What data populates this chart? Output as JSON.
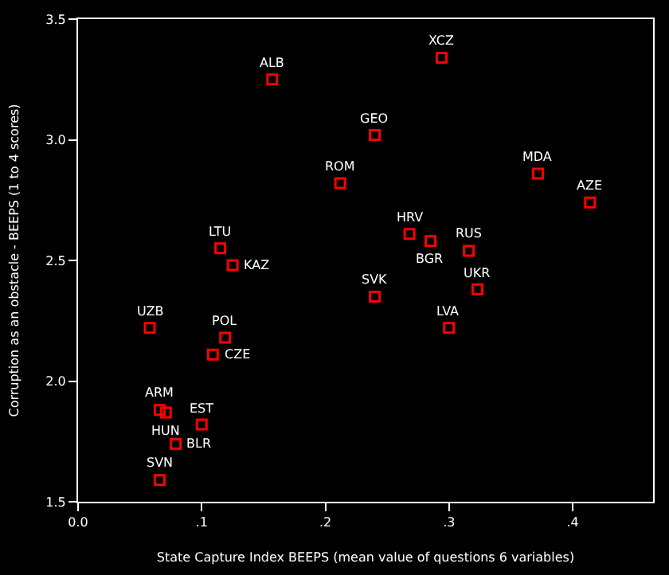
{
  "chart_data": {
    "type": "scatter",
    "xlabel": "State Capture Index BEEPS (mean value of questions 6 variables)",
    "ylabel": "Corruption as an obstacle - BEEPS (1 to 4 scores)",
    "xlim": [
      0,
      0.465
    ],
    "ylim": [
      1.5,
      3.5
    ],
    "xticks": [
      {
        "value": 0,
        "label": "0.0"
      },
      {
        "value": 0.1,
        "label": ".1"
      },
      {
        "value": 0.2,
        "label": ".2"
      },
      {
        "value": 0.3,
        "label": ".3"
      },
      {
        "value": 0.4,
        "label": ".4"
      }
    ],
    "yticks": [
      {
        "value": 1.5,
        "label": "1.5"
      },
      {
        "value": 2.0,
        "label": "2.0"
      },
      {
        "value": 2.5,
        "label": "2.5"
      },
      {
        "value": 3.0,
        "label": "3.0"
      },
      {
        "value": 3.5,
        "label": "3.5"
      }
    ],
    "marker": "square",
    "grid": false,
    "legend": false,
    "series": [
      {
        "color": "#ff0000",
        "x": [
          0.157,
          0.294,
          0.24,
          0.372,
          0.414,
          0.212,
          0.268,
          0.285,
          0.316,
          0.115,
          0.125,
          0.24,
          0.323,
          0.3,
          0.058,
          0.119,
          0.109,
          0.066,
          0.071,
          0.1,
          0.079,
          0.066
        ],
        "values": [
          3.25,
          3.34,
          3.02,
          2.86,
          2.74,
          2.82,
          2.61,
          2.58,
          2.54,
          2.55,
          2.48,
          2.35,
          2.38,
          2.22,
          2.22,
          2.18,
          2.11,
          1.88,
          1.87,
          1.82,
          1.74,
          1.59
        ]
      }
    ],
    "annotations": [
      {
        "text": "ALB",
        "x": 0.157,
        "y": 3.25
      },
      {
        "text": "XCZ",
        "x": 0.294,
        "y": 3.34
      },
      {
        "text": "GEO",
        "x": 0.24,
        "y": 3.02
      },
      {
        "text": "MDA",
        "x": 0.372,
        "y": 2.86
      },
      {
        "text": "AZE",
        "x": 0.414,
        "y": 2.74
      },
      {
        "text": "ROM",
        "x": 0.212,
        "y": 2.82
      },
      {
        "text": "HRV",
        "x": 0.268,
        "y": 2.61
      },
      {
        "text": "BGR",
        "x": 0.285,
        "y": 2.58
      },
      {
        "text": "RUS",
        "x": 0.316,
        "y": 2.54
      },
      {
        "text": "LTU",
        "x": 0.115,
        "y": 2.55
      },
      {
        "text": "KAZ",
        "x": 0.125,
        "y": 2.48
      },
      {
        "text": "SVK",
        "x": 0.24,
        "y": 2.35
      },
      {
        "text": "UKR",
        "x": 0.323,
        "y": 2.38
      },
      {
        "text": "LVA",
        "x": 0.3,
        "y": 2.22
      },
      {
        "text": "UZB",
        "x": 0.058,
        "y": 2.22
      },
      {
        "text": "POL",
        "x": 0.119,
        "y": 2.18
      },
      {
        "text": "CZE",
        "x": 0.109,
        "y": 2.11
      },
      {
        "text": "ARM",
        "x": 0.066,
        "y": 1.88
      },
      {
        "text": "HUN",
        "x": 0.071,
        "y": 1.87
      },
      {
        "text": "EST",
        "x": 0.1,
        "y": 1.82
      },
      {
        "text": "BLR",
        "x": 0.079,
        "y": 1.74
      },
      {
        "text": "SVN",
        "x": 0.066,
        "y": 1.59
      }
    ]
  }
}
